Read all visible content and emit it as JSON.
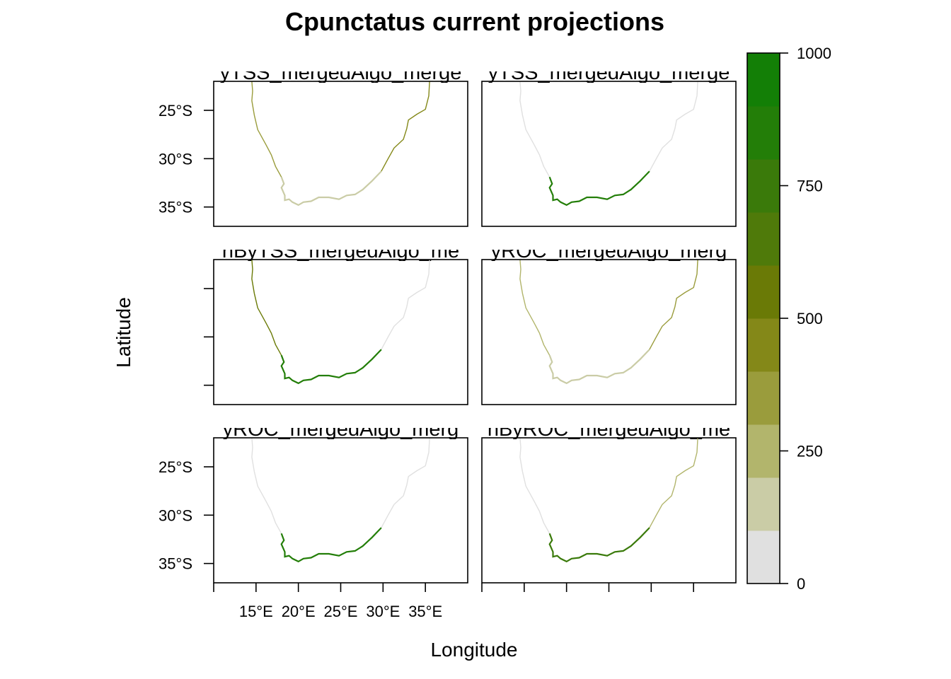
{
  "chart_data": {
    "type": "heatmap",
    "title": "Cpunctatus current projections",
    "xlabel": "Longitude",
    "ylabel": "Latitude",
    "xlim": [
      10,
      40
    ],
    "ylim": [
      -37,
      -22
    ],
    "x_ticks": [
      10,
      15,
      20,
      25,
      30,
      35,
      40
    ],
    "x_tick_labels": [
      "",
      "15°E",
      "20°E",
      "25°E",
      "30°E",
      "35°E",
      ""
    ],
    "y_ticks": [
      -25,
      -30,
      -35
    ],
    "y_tick_labels": [
      "25°S",
      "30°S",
      "35°S"
    ],
    "panels": [
      {
        "strip": "yTSS_mergedAlgo_merge",
        "coast_intensity": 200,
        "west_intensity": 320,
        "east_intensity": 420
      },
      {
        "strip": "yTSS_mergedAlgo_merge",
        "coast_intensity": 850,
        "west_intensity": 100,
        "east_intensity": 30
      },
      {
        "strip": "nByTSS_mergedAlgo_me",
        "coast_intensity": 900,
        "west_intensity": 520,
        "east_intensity": 30
      },
      {
        "strip": "yROC_mergedAlgo_merg",
        "coast_intensity": 180,
        "west_intensity": 260,
        "east_intensity": 320
      },
      {
        "strip": "yROC_mergedAlgo_merg",
        "coast_intensity": 820,
        "west_intensity": 30,
        "east_intensity": 30
      },
      {
        "strip": "nByROC_mergedAlgo_me",
        "coast_intensity": 760,
        "west_intensity": 30,
        "east_intensity": 280
      }
    ],
    "colorbar": {
      "range": [
        0,
        1000
      ],
      "ticks": [
        0,
        250,
        500,
        750,
        1000
      ],
      "tick_labels": [
        "0",
        "250",
        "500",
        "750",
        "1000"
      ],
      "breaks": [
        0,
        100,
        200,
        300,
        400,
        500,
        600,
        700,
        800,
        900,
        1000
      ],
      "colors": [
        "#e0e0e0",
        "#cacca6",
        "#b2b56c",
        "#9a9c3c",
        "#848818",
        "#6a7a06",
        "#4f7a0a",
        "#3a7a0a",
        "#237e08",
        "#137f06"
      ]
    }
  }
}
